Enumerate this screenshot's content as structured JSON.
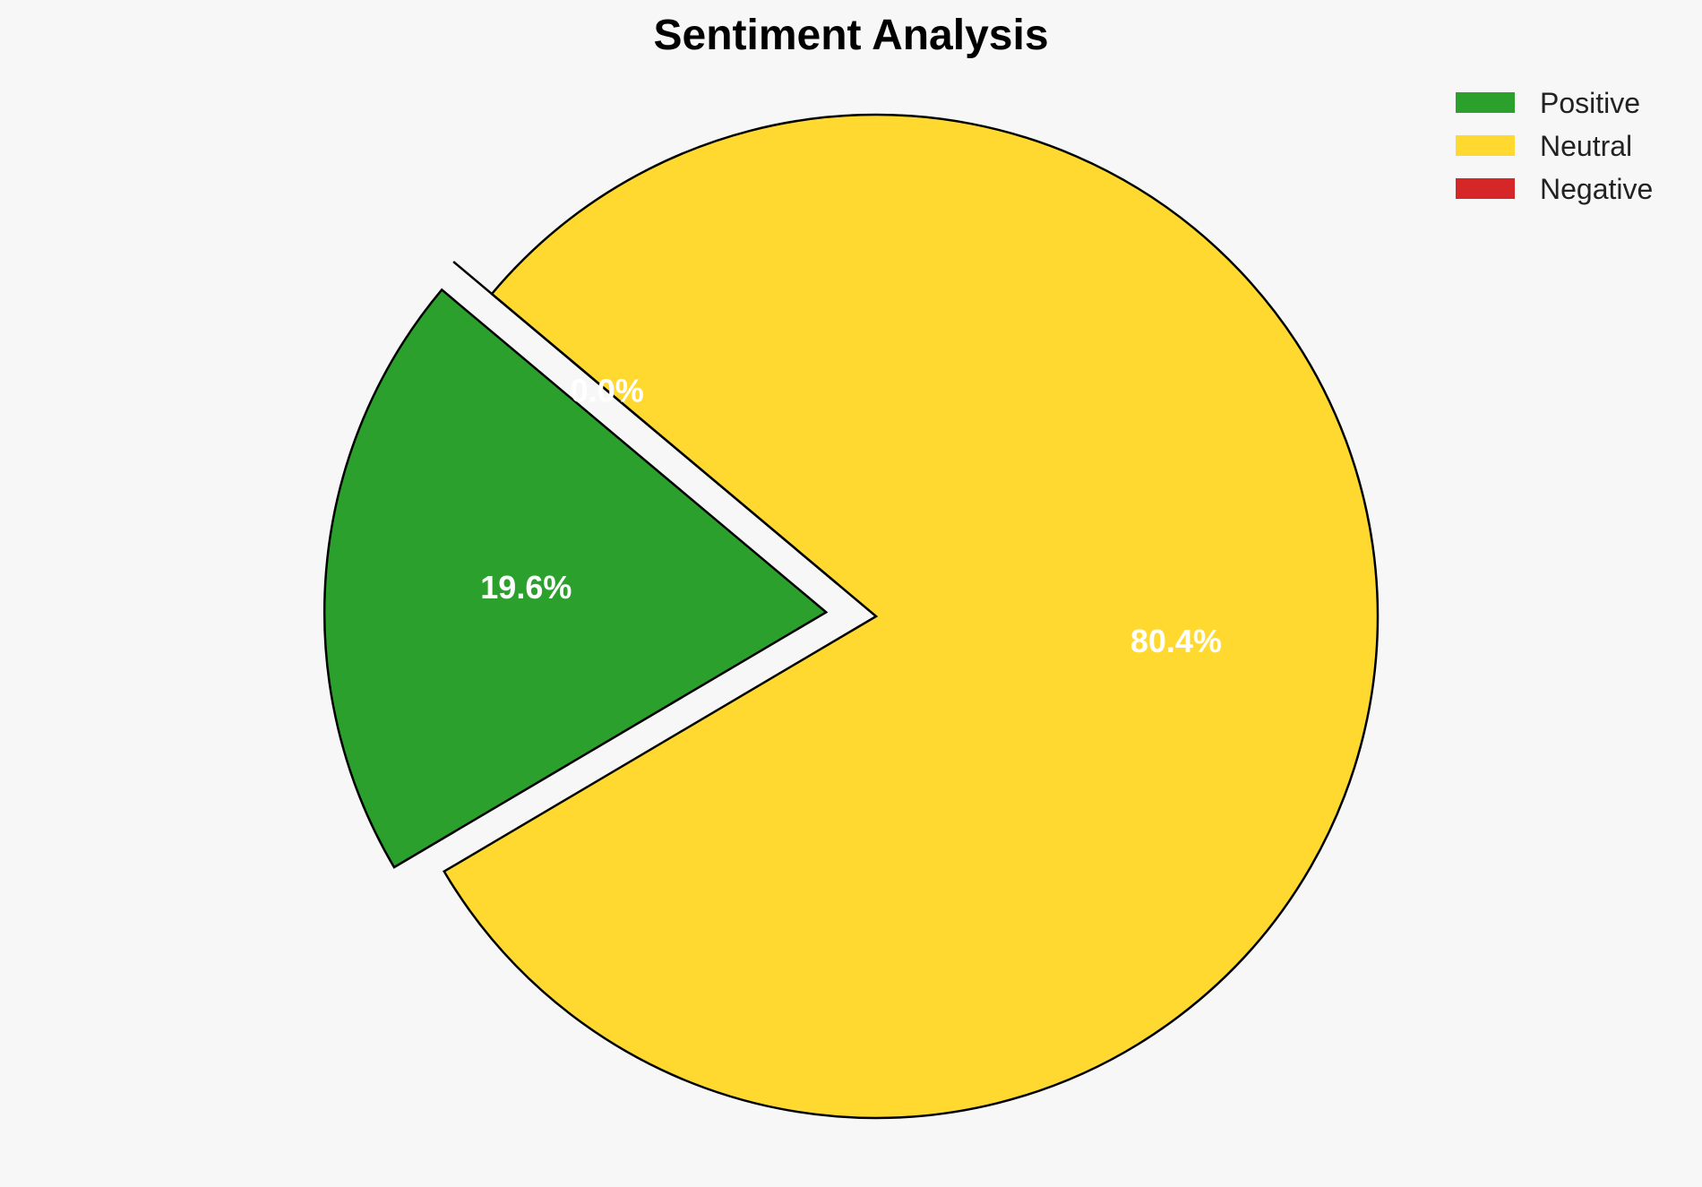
{
  "chart_data": {
    "type": "pie",
    "title": "Sentiment Analysis",
    "categories": [
      "Positive",
      "Neutral",
      "Negative"
    ],
    "values": [
      19.6,
      80.4,
      0.0
    ],
    "labels": [
      "19.6%",
      "80.4%",
      "0.0%"
    ],
    "colors": [
      "#2ca02c",
      "#ffd92f",
      "#d62728"
    ],
    "exploded": [
      true,
      false,
      true
    ],
    "legend_position": "top-right"
  }
}
